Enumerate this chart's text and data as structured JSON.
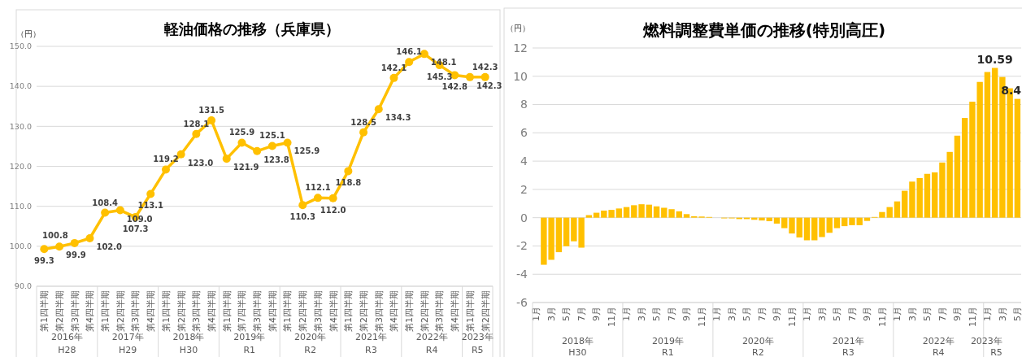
{
  "chart_data": [
    {
      "type": "line",
      "title": "軽油価格の推移（兵庫県）",
      "ylabel": "（円）",
      "color": "#ffc000",
      "marker": "circle",
      "grid": "y",
      "ylim": [
        90,
        150
      ],
      "value_labels": [
        "99.3",
        "99.9",
        "100.8",
        "102.0",
        "108.4",
        "109.0",
        "107.3",
        "113.1",
        "119.2",
        "123.0",
        "128.1",
        "131.5",
        "121.9",
        "125.9",
        "123.8",
        "125.1",
        "125.9",
        "110.3",
        "112.1",
        "112.0",
        "118.8",
        "128.5",
        "134.3",
        "142.1",
        "146.1",
        "148.1",
        "145.3",
        "142.8",
        "142.3",
        "142.3"
      ],
      "yticks": [
        {
          "value": 90,
          "label": "90.0"
        },
        {
          "value": 100,
          "label": "100.0"
        },
        {
          "value": 110,
          "label": "110.0"
        },
        {
          "value": 120,
          "label": "120.0"
        },
        {
          "value": 130,
          "label": "130.0"
        },
        {
          "value": 140,
          "label": "140.0"
        },
        {
          "value": 150,
          "label": "150.0"
        }
      ],
      "categories": [
        "第1四半期",
        "第2四半期",
        "第3四半期",
        "第4四半期",
        "第1四半期",
        "第2四半期",
        "第3四半期",
        "第4四半期",
        "第1四半期",
        "第2四半期",
        "第3四半期",
        "第4四半期",
        "第1四半期",
        "第7四半期",
        "第3四半期",
        "第4四半期",
        "第1四半期",
        "第2四半期",
        "第3四半期",
        "第4四半期",
        "第1四半期",
        "第2四半期",
        "第3四半期",
        "第4四半期",
        "第1四半期",
        "第2四半期",
        "第3四半期",
        "第4四半期",
        "第1四半期",
        "第2四半期"
      ],
      "values": [
        99.3,
        99.9,
        100.8,
        102.0,
        108.4,
        109.0,
        107.3,
        113.1,
        119.2,
        123.0,
        128.1,
        131.5,
        121.9,
        125.9,
        123.8,
        125.1,
        125.9,
        110.3,
        112.1,
        112.0,
        118.8,
        128.5,
        134.3,
        142.1,
        146.1,
        148.1,
        145.3,
        142.8,
        142.3,
        142.3
      ],
      "annotations": [
        "2016年",
        "H28",
        "2017年",
        "H29",
        "2018年",
        "H30",
        "2019年",
        "R1",
        "2020年",
        "R2",
        "2021年",
        "R3",
        "2022年",
        "R4",
        "2023年",
        "R5"
      ]
    },
    {
      "type": "bar",
      "title": "燃料調整費単価の推移(特別高圧)",
      "ylabel": "（円）",
      "color": "#ffc000",
      "grid": "y",
      "ylim": [
        -6,
        12
      ],
      "yticks": [
        -6,
        -4,
        -2,
        0,
        2,
        4,
        6,
        8,
        10,
        12
      ],
      "categories": [
        "1月",
        null,
        "3月",
        null,
        "5月",
        null,
        "7月",
        null,
        "9月",
        null,
        "11月",
        null,
        "1月",
        null,
        "3月",
        null,
        "5月",
        null,
        "7月",
        null,
        "9月",
        null,
        "11月",
        null,
        "1月",
        null,
        "3月",
        null,
        "5月",
        null,
        "7月",
        null,
        "9月",
        null,
        "11月",
        null,
        "1月",
        null,
        "3月",
        null,
        "5月",
        null,
        "7月",
        null,
        "9月",
        null,
        "11月",
        null,
        "1月",
        null,
        "3月",
        null,
        "5月",
        null,
        "7月",
        null,
        "9月",
        null,
        "11月",
        null,
        "1月",
        null,
        "3月",
        null,
        "5月"
      ],
      "values": [
        null,
        -3.33,
        -2.98,
        -2.44,
        -2.02,
        -1.67,
        -2.12,
        0.18,
        0.35,
        0.5,
        0.55,
        0.65,
        0.75,
        0.88,
        0.95,
        0.92,
        0.8,
        0.7,
        0.6,
        0.45,
        0.25,
        0.1,
        0.08,
        0.05,
        0,
        -0.05,
        -0.05,
        -0.1,
        -0.1,
        -0.15,
        -0.2,
        -0.25,
        -0.42,
        -0.74,
        -1.12,
        -1.4,
        -1.6,
        -1.6,
        -1.37,
        -1.07,
        -0.74,
        -0.6,
        -0.53,
        -0.53,
        -0.23,
        0.05,
        0.4,
        0.75,
        1.15,
        1.9,
        2.55,
        2.8,
        3.1,
        3.2,
        3.9,
        4.65,
        5.8,
        7.05,
        8.2,
        9.6,
        10.3,
        10.59,
        9.95,
        9.15,
        8.4
      ],
      "value_labels": [
        null,
        null,
        null,
        null,
        null,
        null,
        null,
        null,
        null,
        null,
        null,
        null,
        null,
        null,
        null,
        null,
        null,
        null,
        null,
        null,
        null,
        null,
        null,
        null,
        null,
        null,
        null,
        null,
        null,
        null,
        null,
        null,
        null,
        null,
        null,
        null,
        null,
        null,
        null,
        null,
        null,
        null,
        null,
        null,
        null,
        null,
        null,
        null,
        null,
        null,
        null,
        null,
        null,
        null,
        null,
        null,
        null,
        null,
        null,
        null,
        null,
        "10.59",
        null,
        null,
        "8.4"
      ],
      "annotations": [
        "2018年",
        "H30",
        "2019年",
        "R1",
        "2020年",
        "R2",
        "2021年",
        "R3",
        "2022年",
        "R4",
        "2023年",
        "R5"
      ]
    }
  ]
}
